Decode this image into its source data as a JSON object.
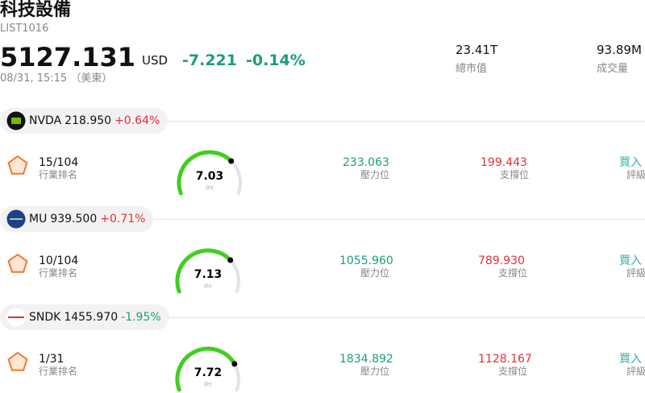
{
  "header": {
    "title": "科技設備",
    "code": "LIST1016",
    "price": "5127.131",
    "currency": "USD",
    "change": "-7.221",
    "change_percent": "-0.14%",
    "time": "08/31, 15:15 （美東）"
  },
  "stats": [
    {
      "value": "23.41T",
      "label": "總市值"
    },
    {
      "value": "93.89M",
      "label": "成交量"
    }
  ],
  "stocks": [
    {
      "ticker": "NVDA",
      "price": "218.950",
      "change": "+0.64%",
      "rank": "15/104",
      "rank_label": "行業排名",
      "score": 7.03,
      "score_label": "評分",
      "resistance": "233.063",
      "resistance_label": "壓力位",
      "support": "199.443",
      "support_label": "支撐位",
      "rating": "買入",
      "rating_label": "評級"
    },
    {
      "ticker": "MU",
      "price": "939.500",
      "change": "+0.71%",
      "rank": "10/104",
      "rank_label": "行業排名",
      "score": 7.13,
      "score_label": "評分",
      "resistance": "1055.960",
      "resistance_label": "壓力位",
      "support": "789.930",
      "support_label": "支撐位",
      "rating": "買入",
      "rating_label": "評級"
    },
    {
      "ticker": "SNDK",
      "price": "1455.970",
      "change": "-1.95%",
      "rank": "1/31",
      "rank_label": "行業排名",
      "score": 7.72,
      "score_label": "評分",
      "resistance": "1834.892",
      "resistance_label": "壓力位",
      "support": "1128.167",
      "support_label": "支撐位",
      "rating": "買入",
      "rating_label": "評級"
    }
  ]
}
